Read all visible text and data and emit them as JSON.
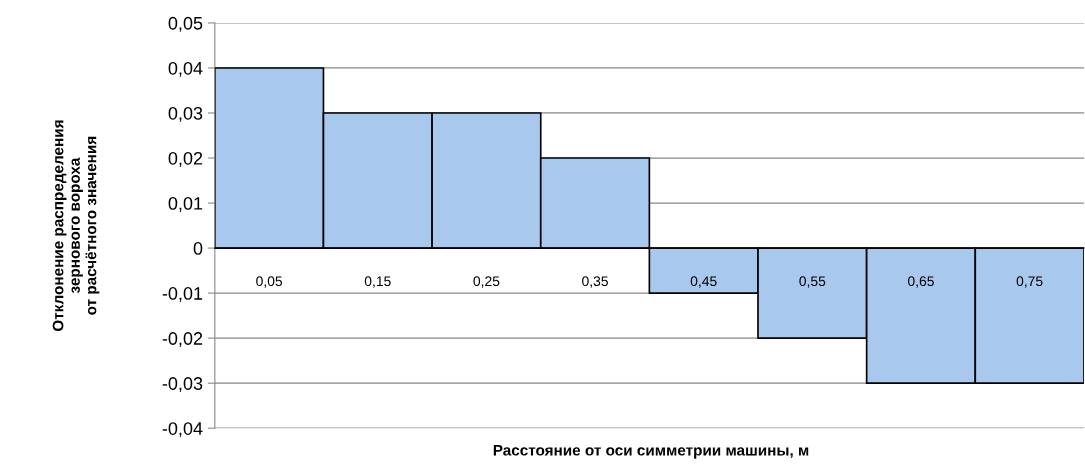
{
  "chart_data": {
    "type": "bar",
    "xlabel": "Расстояние от оси симметрии машины, м",
    "ylabel": "Отклонение распределения\nзернового вороха\nот расчётного значения",
    "categories": [
      "0,05",
      "0,15",
      "0,25",
      "0,35",
      "0,45",
      "0,55",
      "0,65",
      "0,75"
    ],
    "values": [
      0.04,
      0.03,
      0.03,
      0.02,
      -0.01,
      -0.02,
      -0.03,
      -0.03
    ],
    "color": "#a9c8ee",
    "ylim": [
      -0.04,
      0.05
    ],
    "yticks": [
      {
        "value": -0.04,
        "label": "-0,04"
      },
      {
        "value": -0.03,
        "label": "-0,03"
      },
      {
        "value": -0.02,
        "label": "-0,02"
      },
      {
        "value": -0.01,
        "label": "-0,01"
      },
      0,
      {
        "value": 0.01,
        "label": "0,01"
      },
      {
        "value": 0.02,
        "label": "0,02"
      },
      {
        "value": 0.03,
        "label": "0,03"
      },
      {
        "value": 0.04,
        "label": "0,04"
      },
      {
        "value": 0.05,
        "label": "0,05"
      }
    ],
    "grid": "y"
  }
}
